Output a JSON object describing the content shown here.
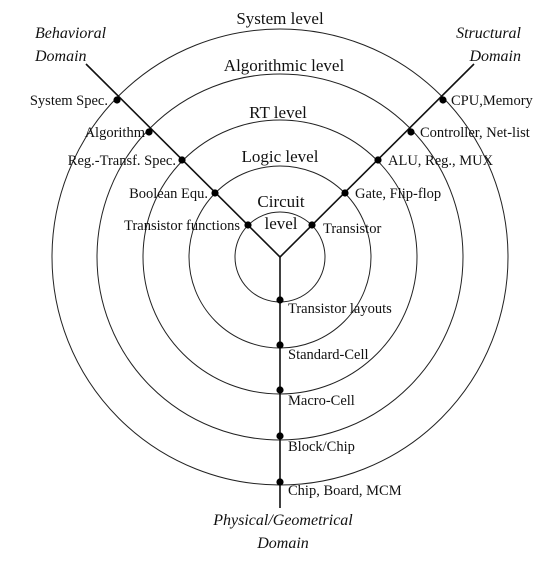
{
  "domains": {
    "behavioral": [
      "Behavioral",
      "Domain"
    ],
    "structural": [
      "Structural",
      "Domain"
    ],
    "physical": [
      "Physical/Geometrical",
      "Domain"
    ]
  },
  "levels": {
    "system": "System level",
    "algorithmic": "Algorithmic level",
    "rt": "RT level",
    "logic": "Logic level",
    "circuit": [
      "Circuit",
      "level"
    ]
  },
  "behavioral_items": {
    "system": "System Spec.",
    "algorithmic": "Algorithm",
    "rt": "Reg.-Transf. Spec.",
    "logic": "Boolean Equ.",
    "circuit": "Transistor functions"
  },
  "structural_items": {
    "system": "CPU,Memory",
    "algorithmic": "Controller, Net-list",
    "rt": "ALU, Reg., MUX",
    "logic": "Gate, Flip-flop",
    "circuit": "Transistor"
  },
  "physical_items": {
    "circuit": "Transistor layouts",
    "logic": "Standard-Cell",
    "rt": "Macro-Cell",
    "algorithmic": "Block/Chip",
    "system": "Chip, Board, MCM"
  },
  "colors": {
    "ink": "#111111",
    "background": "#ffffff"
  }
}
